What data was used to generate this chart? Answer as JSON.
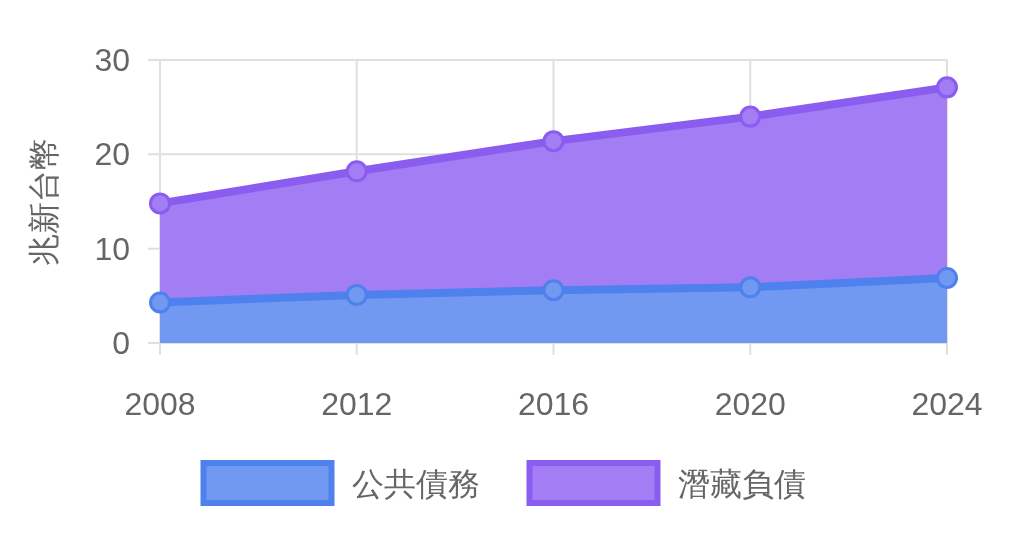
{
  "chart_data": {
    "type": "area",
    "ylabel": "兆新台幣",
    "categories": [
      "2008",
      "2012",
      "2016",
      "2020",
      "2024"
    ],
    "stacked": true,
    "ylim": [
      0,
      30
    ],
    "yticks": [
      0,
      10,
      20,
      30
    ],
    "grid": true,
    "legend": "bottom",
    "marker": "circle",
    "line_style": "solid",
    "series": [
      {
        "name": "公共債務",
        "color": "#4e80ee",
        "values": [
          4.3,
          5.1,
          5.6,
          5.9,
          6.9
        ]
      },
      {
        "name": "潛藏負債",
        "color": "#8b5cf0",
        "values": [
          10.5,
          13.1,
          15.8,
          18.1,
          20.2
        ]
      }
    ]
  }
}
